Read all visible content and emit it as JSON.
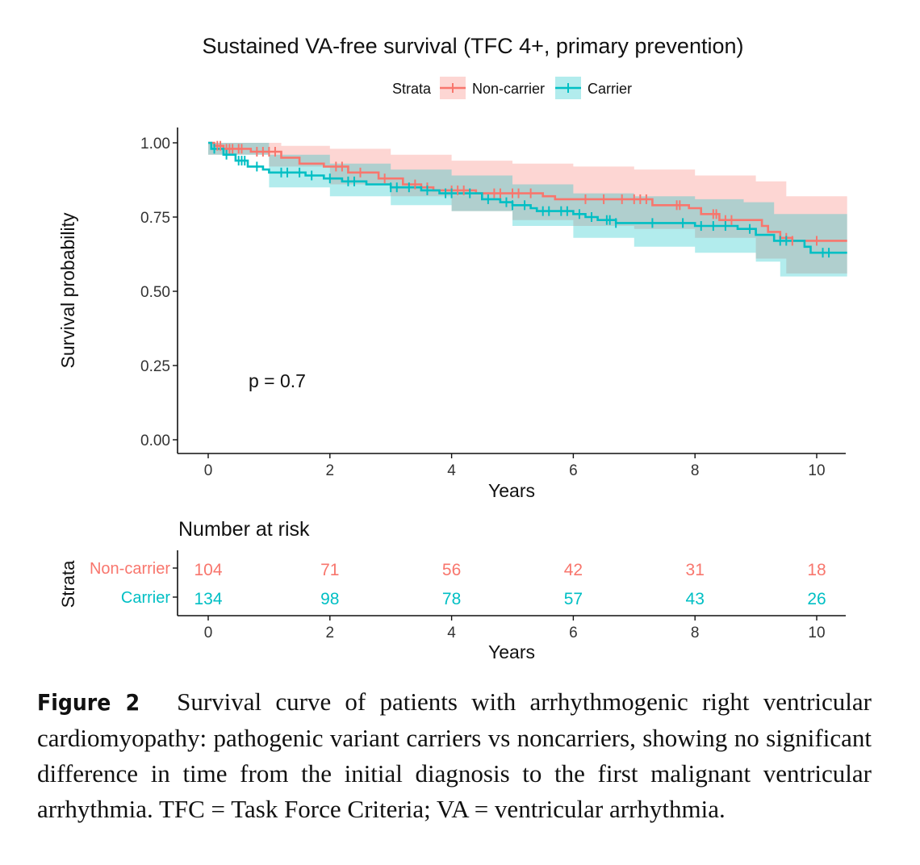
{
  "chart_data": {
    "type": "line",
    "title": "Sustained VA-free survival (TFC 4+, primary prevention)",
    "xlabel": "Years",
    "ylabel": "Survival probability",
    "xlim": [
      0,
      10.5
    ],
    "ylim": [
      0,
      1
    ],
    "x_ticks": [
      "0",
      "2",
      "4",
      "6",
      "8",
      "10"
    ],
    "y_ticks": [
      "0.00",
      "0.25",
      "0.50",
      "0.75",
      "1.00"
    ],
    "legend": {
      "title": "Strata",
      "position": "top",
      "entries": [
        "Non-carrier",
        "Carrier"
      ]
    },
    "annotation": "p = 0.7",
    "series": [
      {
        "name": "Non-carrier",
        "color": "#F8766D",
        "band_color": "#F8766D",
        "steps": [
          [
            0,
            1.0
          ],
          [
            0.1,
            0.99
          ],
          [
            0.25,
            0.98
          ],
          [
            0.7,
            0.97
          ],
          [
            1.2,
            0.95
          ],
          [
            1.5,
            0.93
          ],
          [
            1.9,
            0.92
          ],
          [
            2.3,
            0.9
          ],
          [
            2.8,
            0.88
          ],
          [
            3.2,
            0.86
          ],
          [
            3.5,
            0.85
          ],
          [
            3.7,
            0.84
          ],
          [
            4.4,
            0.83
          ],
          [
            5.5,
            0.82
          ],
          [
            5.7,
            0.81
          ],
          [
            7.3,
            0.79
          ],
          [
            7.9,
            0.78
          ],
          [
            8.1,
            0.76
          ],
          [
            8.4,
            0.74
          ],
          [
            9.1,
            0.72
          ],
          [
            9.2,
            0.7
          ],
          [
            9.4,
            0.68
          ],
          [
            9.6,
            0.67
          ],
          [
            10.5,
            0.67
          ]
        ],
        "upper": [
          [
            0,
            1.0
          ],
          [
            1.2,
            0.99
          ],
          [
            2.0,
            0.98
          ],
          [
            3.0,
            0.96
          ],
          [
            4.0,
            0.94
          ],
          [
            5.0,
            0.93
          ],
          [
            6.0,
            0.92
          ],
          [
            7.0,
            0.91
          ],
          [
            8.0,
            0.89
          ],
          [
            9.0,
            0.87
          ],
          [
            9.5,
            0.82
          ],
          [
            10.5,
            0.82
          ]
        ],
        "lower": [
          [
            0,
            0.96
          ],
          [
            1.0,
            0.92
          ],
          [
            2.0,
            0.86
          ],
          [
            3.0,
            0.82
          ],
          [
            4.0,
            0.77
          ],
          [
            5.0,
            0.74
          ],
          [
            6.0,
            0.72
          ],
          [
            7.0,
            0.71
          ],
          [
            8.0,
            0.68
          ],
          [
            9.0,
            0.61
          ],
          [
            9.5,
            0.56
          ],
          [
            10.5,
            0.56
          ]
        ],
        "censor_x": [
          0.15,
          0.2,
          0.3,
          0.35,
          0.4,
          0.5,
          0.55,
          0.8,
          0.9,
          1.0,
          1.1,
          2.1,
          2.2,
          2.5,
          2.9,
          3.4,
          3.6,
          4.0,
          4.1,
          4.2,
          4.7,
          4.8,
          5.0,
          5.1,
          5.3,
          6.2,
          6.5,
          6.8,
          7.0,
          7.1,
          7.2,
          7.7,
          7.75,
          8.3,
          8.35,
          8.5,
          8.6,
          9.5,
          9.6,
          10.0
        ]
      },
      {
        "name": "Carrier",
        "color": "#00BFC4",
        "band_color": "#00BFC4",
        "steps": [
          [
            0,
            1.0
          ],
          [
            0.05,
            0.98
          ],
          [
            0.25,
            0.96
          ],
          [
            0.45,
            0.94
          ],
          [
            0.65,
            0.92
          ],
          [
            0.9,
            0.91
          ],
          [
            1.0,
            0.9
          ],
          [
            1.6,
            0.89
          ],
          [
            1.9,
            0.88
          ],
          [
            2.2,
            0.87
          ],
          [
            2.6,
            0.86
          ],
          [
            3.0,
            0.85
          ],
          [
            3.5,
            0.84
          ],
          [
            3.8,
            0.83
          ],
          [
            4.5,
            0.81
          ],
          [
            4.8,
            0.8
          ],
          [
            5.0,
            0.79
          ],
          [
            5.3,
            0.78
          ],
          [
            5.4,
            0.77
          ],
          [
            6.0,
            0.76
          ],
          [
            6.2,
            0.75
          ],
          [
            6.4,
            0.74
          ],
          [
            6.7,
            0.73
          ],
          [
            8.0,
            0.72
          ],
          [
            8.7,
            0.71
          ],
          [
            9.0,
            0.69
          ],
          [
            9.3,
            0.67
          ],
          [
            9.8,
            0.65
          ],
          [
            9.9,
            0.63
          ],
          [
            10.5,
            0.63
          ]
        ],
        "upper": [
          [
            0,
            1.0
          ],
          [
            1.0,
            0.96
          ],
          [
            2.0,
            0.93
          ],
          [
            3.0,
            0.91
          ],
          [
            4.0,
            0.89
          ],
          [
            5.0,
            0.86
          ],
          [
            6.0,
            0.83
          ],
          [
            7.0,
            0.82
          ],
          [
            8.0,
            0.81
          ],
          [
            8.8,
            0.8
          ],
          [
            9.3,
            0.76
          ],
          [
            10.5,
            0.76
          ]
        ],
        "lower": [
          [
            0,
            0.96
          ],
          [
            1.0,
            0.85
          ],
          [
            2.0,
            0.82
          ],
          [
            3.0,
            0.79
          ],
          [
            4.0,
            0.77
          ],
          [
            5.0,
            0.72
          ],
          [
            6.0,
            0.68
          ],
          [
            7.0,
            0.65
          ],
          [
            8.0,
            0.63
          ],
          [
            9.0,
            0.6
          ],
          [
            9.4,
            0.55
          ],
          [
            10.5,
            0.53
          ]
        ],
        "censor_x": [
          0.1,
          0.3,
          0.5,
          0.55,
          0.6,
          0.8,
          1.2,
          1.3,
          1.5,
          1.7,
          2.0,
          2.3,
          2.4,
          3.0,
          3.1,
          3.3,
          3.6,
          3.9,
          4.0,
          4.3,
          4.6,
          4.9,
          5.0,
          5.2,
          5.5,
          5.6,
          5.8,
          5.9,
          6.1,
          6.3,
          6.55,
          6.6,
          6.7,
          7.3,
          7.8,
          8.1,
          8.3,
          8.5,
          8.9,
          9.4,
          9.5,
          10.1,
          10.2
        ]
      }
    ]
  },
  "risk_table": {
    "title": "Number at risk",
    "y_title": "Strata",
    "xlabel": "Years",
    "x_ticks": [
      "0",
      "2",
      "4",
      "6",
      "8",
      "10"
    ],
    "rows": [
      {
        "label": "Non-carrier",
        "color": "#F8766D",
        "values": [
          "104",
          "71",
          "56",
          "42",
          "31",
          "18"
        ]
      },
      {
        "label": "Carrier",
        "color": "#00BFC4",
        "values": [
          "134",
          "98",
          "78",
          "57",
          "43",
          "26"
        ]
      }
    ]
  },
  "caption": {
    "label": "Figure 2",
    "text": "Survival curve of patients with arrhythmogenic right ventricular cardiomyopathy: pathogenic variant carriers vs noncarriers, showing no significant difference in time from the initial diagnosis to the first malignant ventricular arrhythmia. TFC = Task Force Criteria; VA = ventricular arrhythmia."
  }
}
